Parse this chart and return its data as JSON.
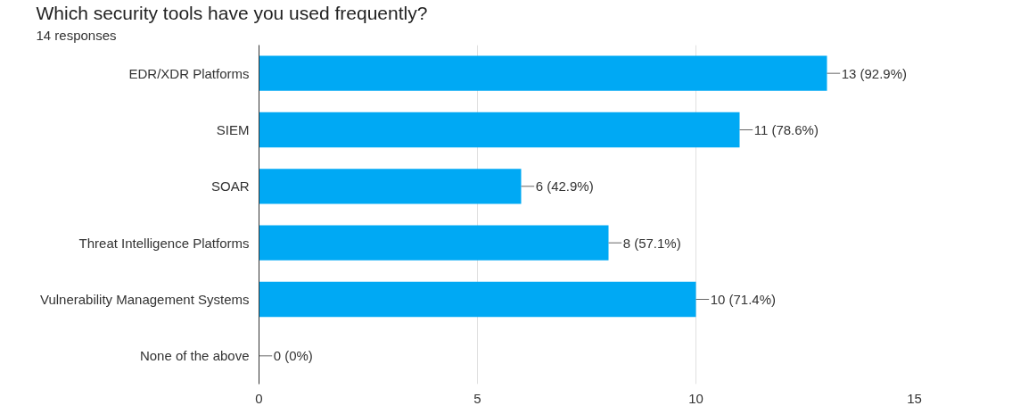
{
  "chart_data": {
    "type": "bar",
    "orientation": "horizontal",
    "title": "Which security tools have you used frequently?",
    "subtitle": "14 responses",
    "categories": [
      "EDR/XDR Platforms",
      "SIEM",
      "SOAR",
      "Threat Intelligence Platforms",
      "Vulnerability Management Systems",
      "None of the above"
    ],
    "values": [
      13,
      11,
      6,
      8,
      10,
      0
    ],
    "value_labels": [
      "13 (92.9%)",
      "11 (78.6%)",
      "6 (42.9%)",
      "8 (57.1%)",
      "10 (71.4%)",
      "0 (0%)"
    ],
    "color": "#00a9f4",
    "xlim": [
      0,
      15
    ],
    "xticks": [
      0,
      5,
      10,
      15
    ],
    "grid": "x"
  }
}
